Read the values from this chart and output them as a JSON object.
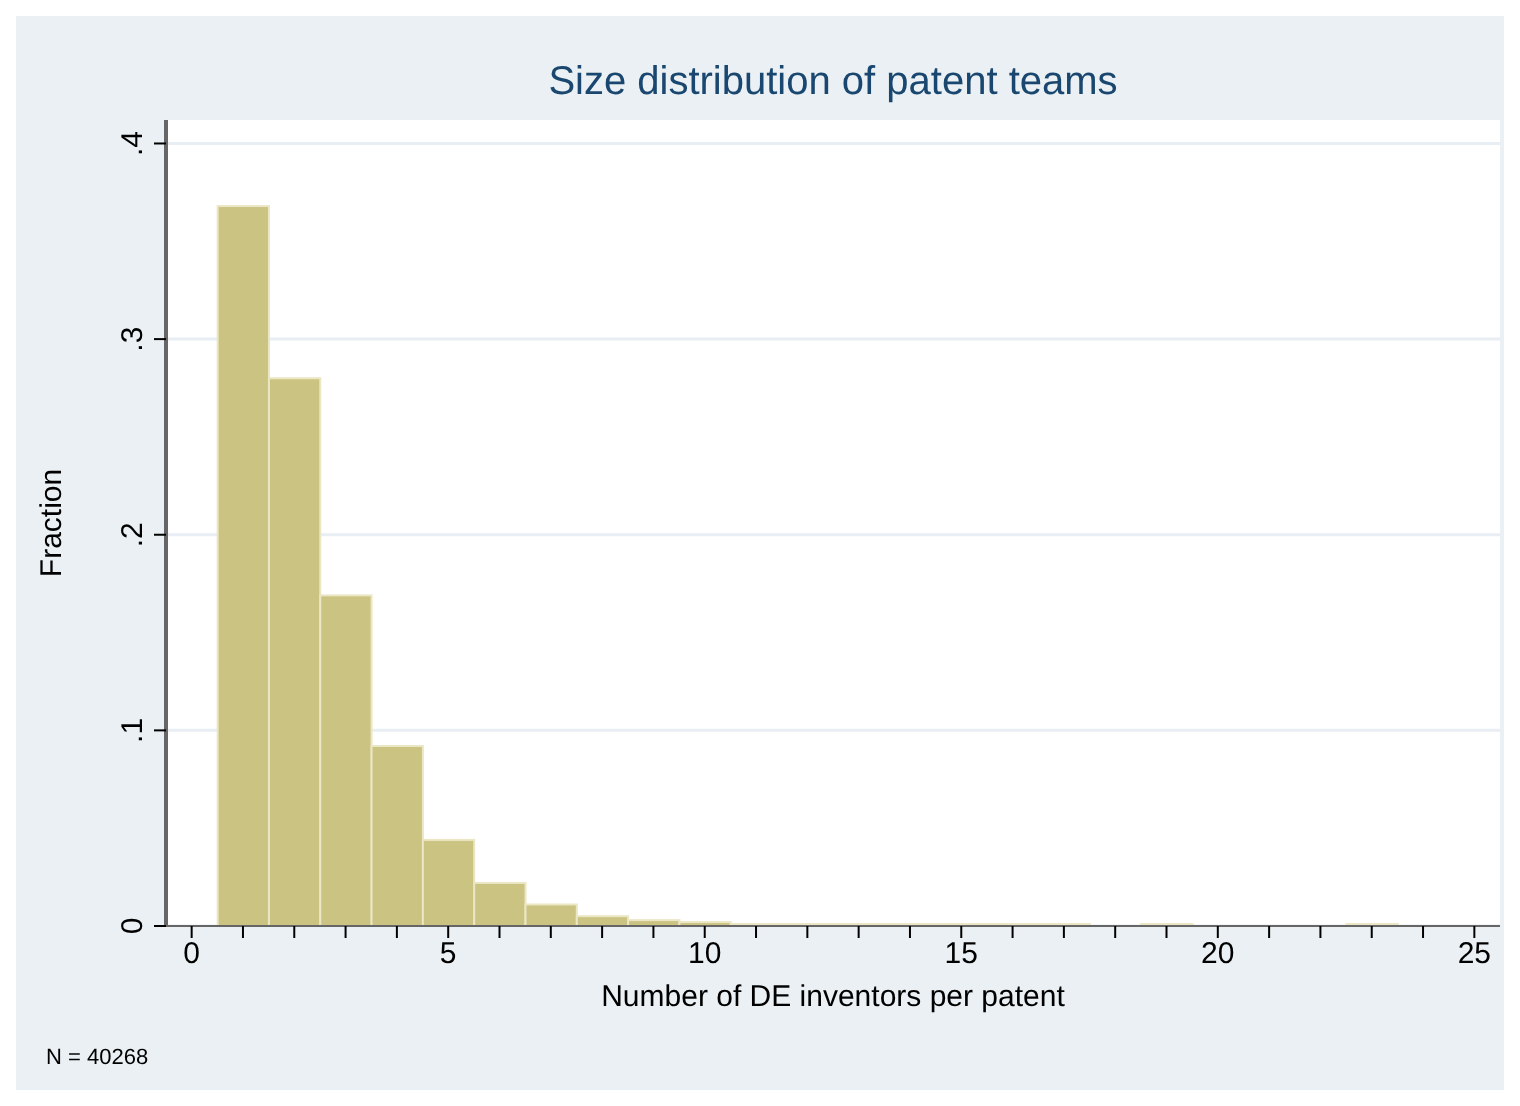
{
  "chart_data": {
    "type": "histogram",
    "title": "Size distribution of patent teams",
    "xlabel": "Number of DE inventors per patent",
    "ylabel": "Fraction",
    "annotations": [
      "N = 40268"
    ],
    "bins": [
      0.5,
      1.5,
      2.5,
      3.5,
      4.5,
      5.5,
      6.5,
      7.5,
      8.5,
      9.5,
      10.5,
      11.5,
      12.5,
      13.5,
      14.5,
      15.5,
      16.5,
      17.5,
      18.5,
      19.5,
      20.5,
      21.5,
      22.5,
      23.5
    ],
    "values": [
      0.368,
      0.28,
      0.169,
      0.092,
      0.044,
      0.022,
      0.011,
      0.005,
      0.003,
      0.002,
      0.001,
      0.001,
      0.001,
      0.001,
      0.001,
      0.001,
      0.001,
      0,
      0.001,
      0,
      0,
      0,
      0.001
    ],
    "color": "#cbc382",
    "xlim": [
      -0.5,
      25.5
    ],
    "ylim": [
      0,
      0.412
    ],
    "xticks": [
      0,
      {
        "value": 1,
        "label": null
      },
      {
        "value": 2,
        "label": null
      },
      {
        "value": 3,
        "label": null
      },
      {
        "value": 4,
        "label": null
      },
      5,
      {
        "value": 6,
        "label": null
      },
      {
        "value": 7,
        "label": null
      },
      {
        "value": 8,
        "label": null
      },
      {
        "value": 9,
        "label": null
      },
      10,
      {
        "value": 11,
        "label": null
      },
      {
        "value": 12,
        "label": null
      },
      {
        "value": 13,
        "label": null
      },
      {
        "value": 14,
        "label": null
      },
      15,
      {
        "value": 16,
        "label": null
      },
      {
        "value": 17,
        "label": null
      },
      {
        "value": 18,
        "label": null
      },
      {
        "value": 19,
        "label": null
      },
      20,
      {
        "value": 21,
        "label": null
      },
      {
        "value": 22,
        "label": null
      },
      {
        "value": 23,
        "label": null
      },
      {
        "value": 24,
        "label": null
      },
      25
    ],
    "yticks": [
      0,
      {
        "value": 0.1,
        "label": ".1"
      },
      {
        "value": 0.2,
        "label": ".2"
      },
      {
        "value": 0.3,
        "label": ".3"
      },
      {
        "value": 0.4,
        "label": ".4"
      }
    ],
    "grid": "y"
  }
}
